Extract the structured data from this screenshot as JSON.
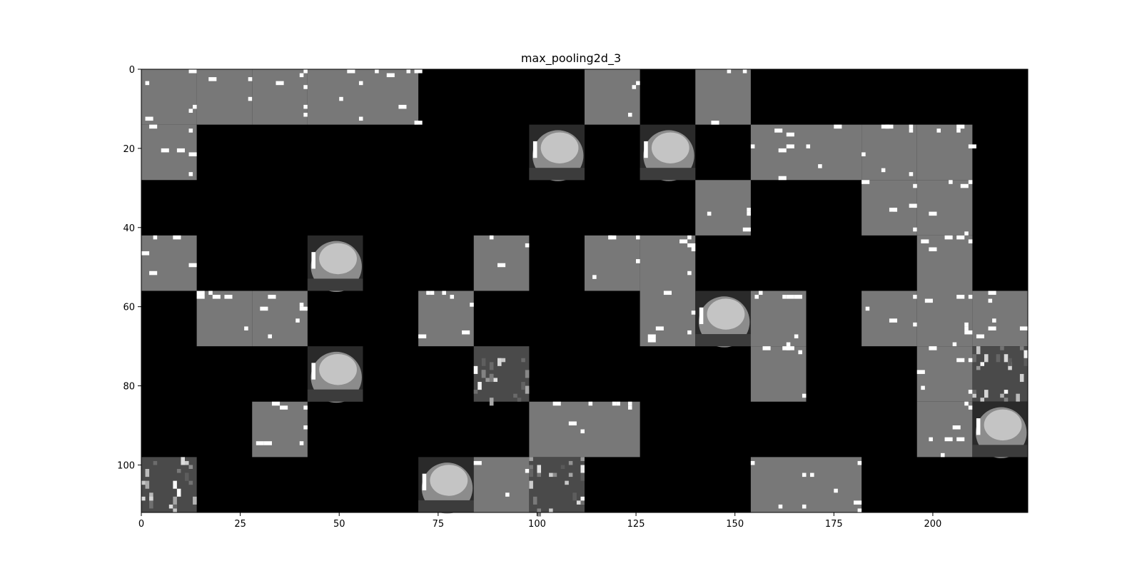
{
  "chart_data": {
    "type": "heatmap",
    "title": "max_pooling2d_3",
    "colormap": "gray",
    "xlim": [
      0,
      224
    ],
    "ylim": [
      112,
      0
    ],
    "x_ticks": [
      0,
      25,
      50,
      75,
      100,
      125,
      150,
      175,
      200
    ],
    "y_ticks": [
      0,
      20,
      40,
      60,
      80,
      100
    ],
    "tile_size": 14,
    "grid_cols": 16,
    "grid_rows": 8,
    "tiles": [
      [
        1,
        1,
        1,
        1,
        1,
        0,
        0,
        0,
        1,
        0,
        1,
        0,
        0,
        0,
        0,
        0
      ],
      [
        1,
        0,
        0,
        0,
        0,
        0,
        0,
        2,
        0,
        2,
        0,
        1,
        1,
        1,
        1,
        0
      ],
      [
        0,
        0,
        0,
        0,
        0,
        0,
        0,
        0,
        0,
        0,
        1,
        0,
        0,
        1,
        1,
        0
      ],
      [
        1,
        0,
        0,
        2,
        0,
        0,
        1,
        0,
        1,
        1,
        0,
        0,
        0,
        0,
        1,
        0
      ],
      [
        0,
        1,
        1,
        0,
        0,
        1,
        0,
        0,
        0,
        1,
        2,
        1,
        0,
        1,
        1,
        1
      ],
      [
        0,
        0,
        0,
        2,
        0,
        0,
        3,
        0,
        0,
        0,
        0,
        1,
        0,
        0,
        1,
        3
      ],
      [
        0,
        0,
        1,
        0,
        0,
        0,
        0,
        1,
        1,
        0,
        0,
        0,
        0,
        0,
        1,
        2
      ],
      [
        3,
        0,
        0,
        0,
        0,
        2,
        1,
        3,
        0,
        0,
        0,
        1,
        1,
        0,
        0,
        0
      ]
    ]
  }
}
